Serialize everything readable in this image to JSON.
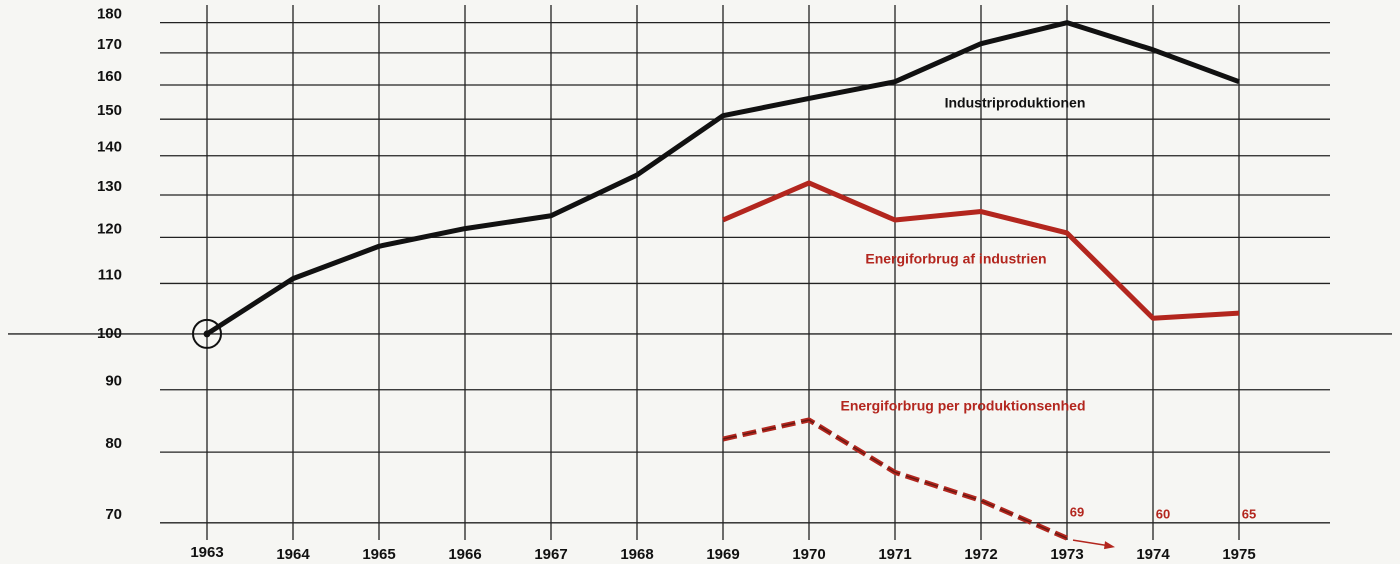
{
  "chart_data": {
    "type": "line",
    "categories": [
      "1963",
      "1964",
      "1965",
      "1966",
      "1967",
      "1968",
      "1969",
      "1970",
      "1971",
      "1972",
      "1973",
      "1974",
      "1975"
    ],
    "series": [
      {
        "name": "Industriproduktionen",
        "color": "#111111",
        "dashed": false,
        "values": [
          100,
          111,
          118,
          122,
          125,
          135,
          151,
          156,
          161,
          173,
          180,
          171,
          161
        ]
      },
      {
        "name": "Energiforbrug af industrien",
        "color": "#b3261e",
        "dashed": false,
        "values": [
          null,
          null,
          null,
          null,
          null,
          null,
          124,
          133,
          124,
          126,
          121,
          103,
          104
        ]
      },
      {
        "name": "Energiforbrug per produktionsenhed",
        "color": "#b3261e",
        "dashed": true,
        "values": [
          null,
          null,
          null,
          null,
          null,
          null,
          82,
          85,
          77,
          73,
          68,
          null,
          null
        ]
      }
    ],
    "annotations": [
      "69",
      "60",
      "65"
    ],
    "ylim": [
      67,
      184
    ],
    "yticks": [
      70,
      80,
      90,
      100,
      110,
      120,
      130,
      140,
      150,
      160,
      170,
      180
    ],
    "log_y": true,
    "grid": true
  }
}
